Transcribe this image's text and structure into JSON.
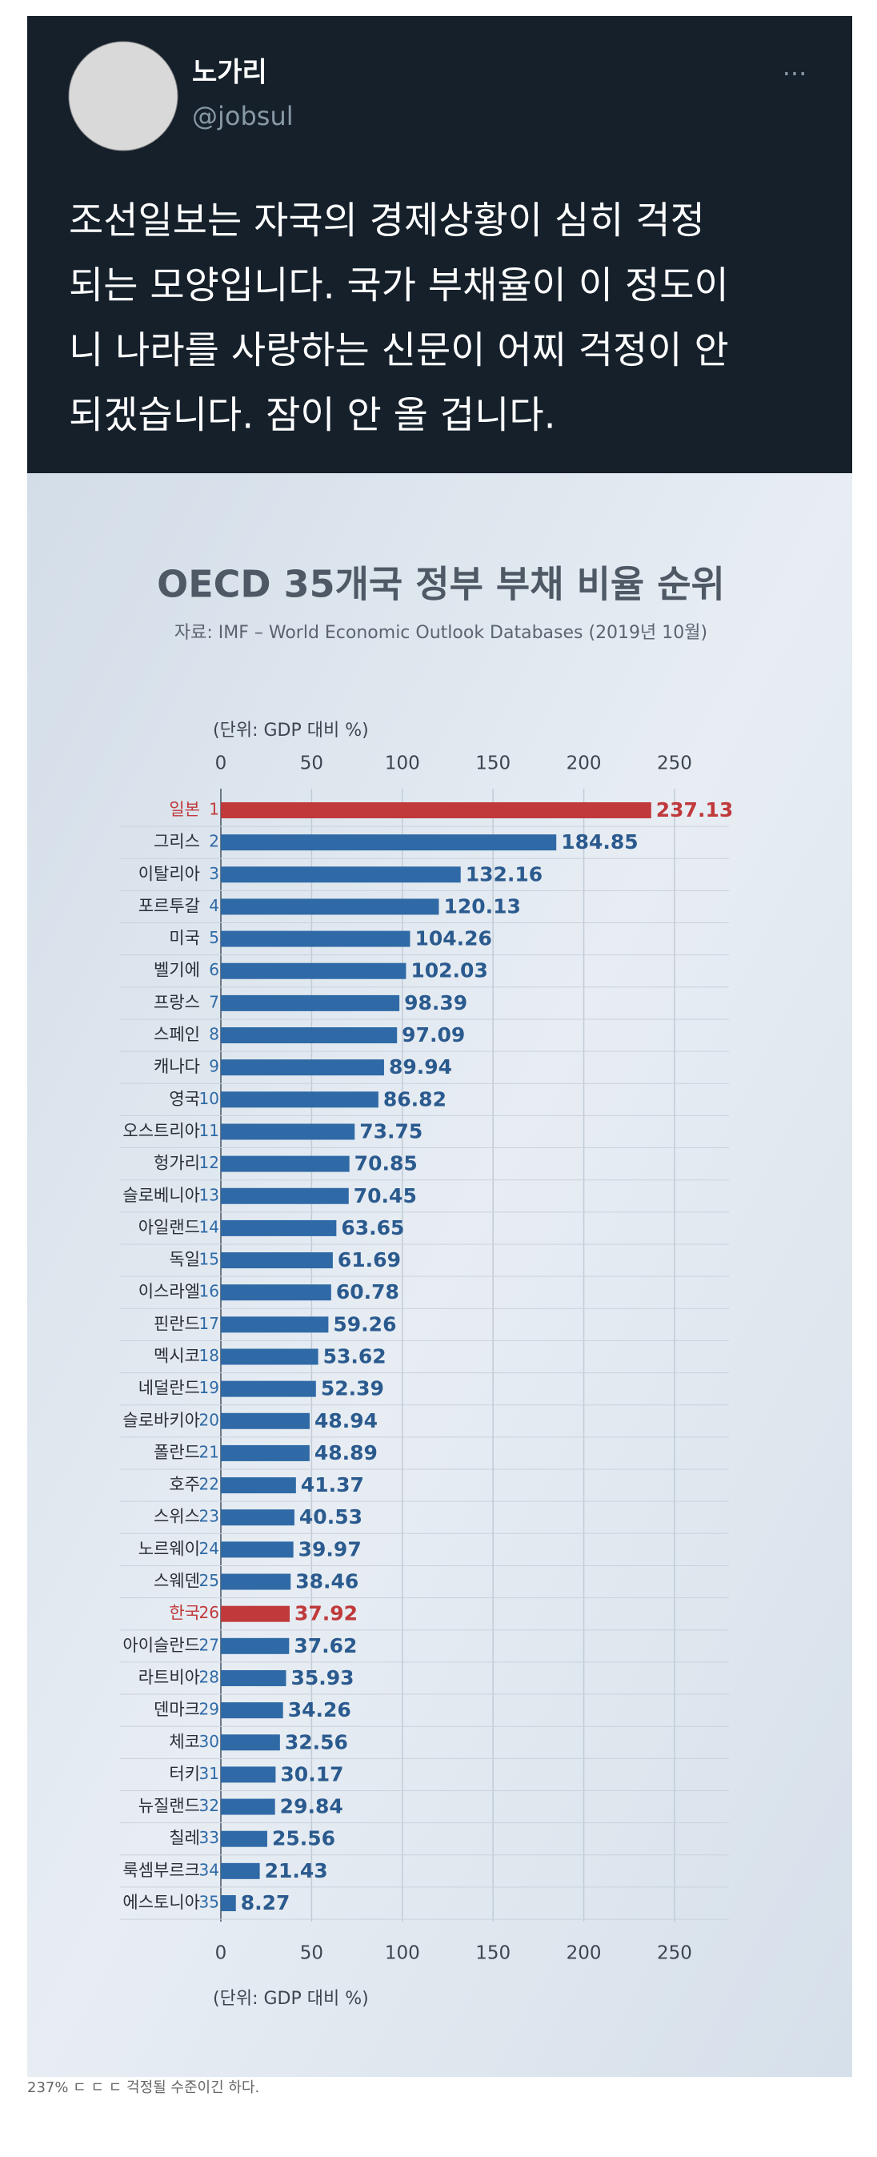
{
  "tweet": {
    "name": "노가리",
    "handle": "@jobsul",
    "more": "···",
    "text_lines": [
      "조선일보는 자국의 경제상황이 심히 걱정",
      "되는 모양입니다. 국가 부채율이 이 정도이",
      "니 나라를 사랑하는 신문이 어찌 걱정이 안",
      "되겠습니다. 잠이 안 올 겁니다."
    ]
  },
  "chart_data": {
    "type": "bar",
    "orientation": "horizontal",
    "title": "OECD 35개국 정부 부채 비율 순위",
    "subtitle": "자료: IMF – World Economic Outlook Databases (2019년 10월)",
    "unit_label": "(단위: GDP 대비 %)",
    "categories": [
      "일본",
      "그리스",
      "이탈리아",
      "포르투갈",
      "미국",
      "벨기에",
      "프랑스",
      "스페인",
      "캐나다",
      "영국",
      "오스트리아",
      "헝가리",
      "슬로베니아",
      "아일랜드",
      "독일",
      "이스라엘",
      "핀란드",
      "멕시코",
      "네덜란드",
      "슬로바키아",
      "폴란드",
      "호주",
      "스위스",
      "노르웨이",
      "스웨덴",
      "한국",
      "아이슬란드",
      "라트비아",
      "덴마크",
      "체코",
      "터키",
      "뉴질랜드",
      "칠레",
      "룩셈부르크",
      "에스토니아"
    ],
    "ranks": [
      1,
      2,
      3,
      4,
      5,
      6,
      7,
      8,
      9,
      10,
      11,
      12,
      13,
      14,
      15,
      16,
      17,
      18,
      19,
      20,
      21,
      22,
      23,
      24,
      25,
      26,
      27,
      28,
      29,
      30,
      31,
      32,
      33,
      34,
      35
    ],
    "values": [
      237.13,
      184.85,
      132.16,
      120.13,
      104.26,
      102.03,
      98.39,
      97.09,
      89.94,
      86.82,
      73.75,
      70.85,
      70.45,
      63.65,
      61.69,
      60.78,
      59.26,
      53.62,
      52.39,
      48.94,
      48.89,
      41.37,
      40.53,
      39.97,
      38.46,
      37.92,
      37.62,
      35.93,
      34.26,
      32.56,
      30.17,
      29.84,
      25.56,
      21.43,
      8.27
    ],
    "colors": [
      "#c0393b",
      "#2f6aa6",
      "#2f6aa6",
      "#2f6aa6",
      "#2f6aa6",
      "#2f6aa6",
      "#2f6aa6",
      "#2f6aa6",
      "#2f6aa6",
      "#2f6aa6",
      "#2f6aa6",
      "#2f6aa6",
      "#2f6aa6",
      "#2f6aa6",
      "#2f6aa6",
      "#2f6aa6",
      "#2f6aa6",
      "#2f6aa6",
      "#2f6aa6",
      "#2f6aa6",
      "#2f6aa6",
      "#2f6aa6",
      "#2f6aa6",
      "#2f6aa6",
      "#2f6aa6",
      "#c0393b",
      "#2f6aa6",
      "#2f6aa6",
      "#2f6aa6",
      "#2f6aa6",
      "#2f6aa6",
      "#2f6aa6",
      "#2f6aa6",
      "#2f6aa6",
      "#2f6aa6"
    ],
    "xlim": [
      0,
      280
    ],
    "xticks": [
      0,
      50,
      100,
      150,
      200,
      250
    ],
    "grid": true
  },
  "caption": "237% ㄷ ㄷ ㄷ 걱정될 수준이긴 하다."
}
